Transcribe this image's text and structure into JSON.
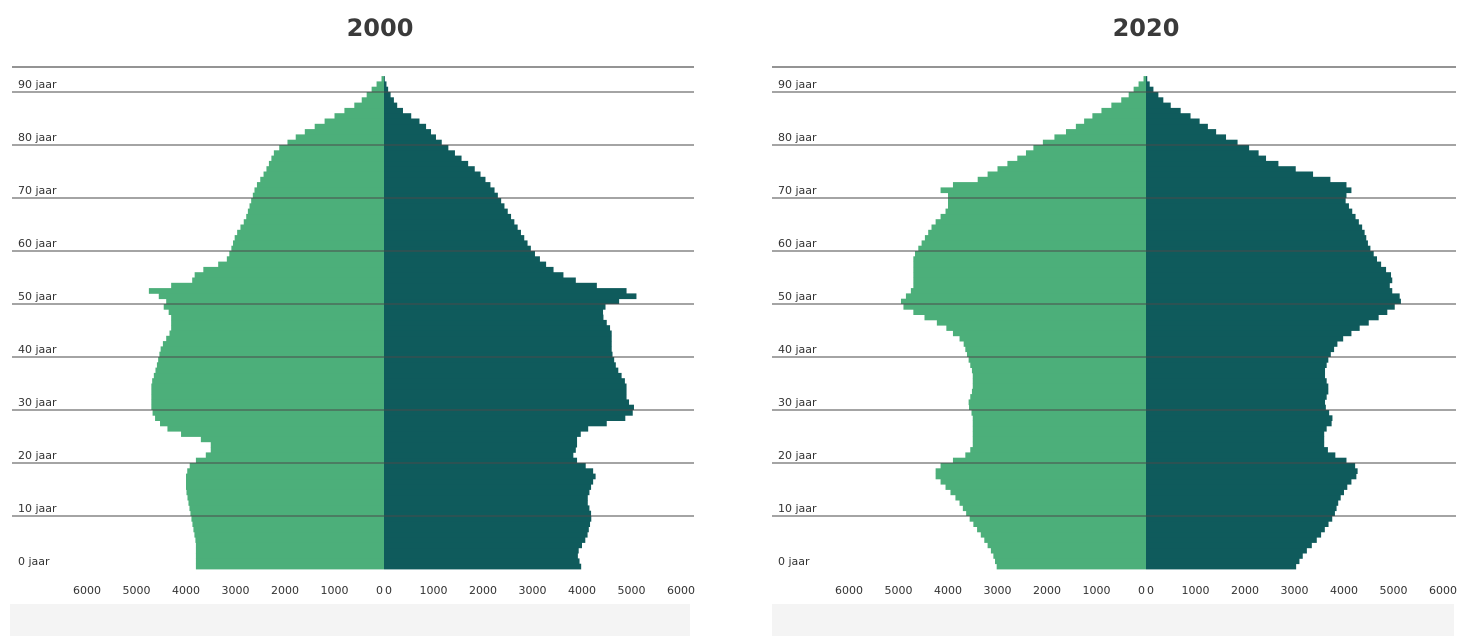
{
  "chart_data": [
    {
      "type": "bar",
      "title": "2000",
      "orientation": "horizontal-pyramid",
      "y_unit_label": "jaar",
      "y_tick_labels": [
        "0 jaar",
        "10 jaar",
        "20 jaar",
        "30 jaar",
        "40 jaar",
        "50 jaar",
        "60 jaar",
        "70 jaar",
        "80 jaar",
        "90 jaar"
      ],
      "y_tick_values": [
        0,
        10,
        20,
        30,
        40,
        50,
        60,
        70,
        80,
        90
      ],
      "x_tick_labels_left": [
        "6000",
        "5000",
        "4000",
        "3000",
        "2000",
        "1000",
        "0"
      ],
      "x_tick_labels_right": [
        "0",
        "1000",
        "2000",
        "3000",
        "4000",
        "5000",
        "6000"
      ],
      "xlim": [
        0,
        6000
      ],
      "ylim": [
        0,
        95
      ],
      "grid": "horizontal lines every 10 years",
      "left_color": "#4caf7a",
      "right_color": "#0f5b5c",
      "anchors_left": [
        [
          0,
          3800
        ],
        [
          5,
          3800
        ],
        [
          10,
          3900
        ],
        [
          15,
          4000
        ],
        [
          18,
          4000
        ],
        [
          20,
          3900
        ],
        [
          22,
          3500
        ],
        [
          24,
          3500
        ],
        [
          26,
          4300
        ],
        [
          28,
          4600
        ],
        [
          30,
          4700
        ],
        [
          33,
          4700
        ],
        [
          35,
          4700
        ],
        [
          38,
          4600
        ],
        [
          42,
          4500
        ],
        [
          45,
          4300
        ],
        [
          48,
          4300
        ],
        [
          50,
          4500
        ],
        [
          51,
          4300
        ],
        [
          52,
          4800
        ],
        [
          53,
          4700
        ],
        [
          54,
          3900
        ],
        [
          56,
          3800
        ],
        [
          58,
          3200
        ],
        [
          60,
          3100
        ],
        [
          63,
          3000
        ],
        [
          66,
          2800
        ],
        [
          69,
          2700
        ],
        [
          72,
          2600
        ],
        [
          75,
          2400
        ],
        [
          77,
          2300
        ],
        [
          79,
          2200
        ],
        [
          82,
          1700
        ],
        [
          85,
          1100
        ],
        [
          88,
          500
        ],
        [
          91,
          200
        ],
        [
          93,
          0
        ]
      ],
      "anchors_right": [
        [
          0,
          4000
        ],
        [
          3,
          3900
        ],
        [
          6,
          4100
        ],
        [
          10,
          4200
        ],
        [
          13,
          4100
        ],
        [
          16,
          4200
        ],
        [
          18,
          4300
        ],
        [
          20,
          4000
        ],
        [
          21,
          3800
        ],
        [
          23,
          3900
        ],
        [
          25,
          3900
        ],
        [
          27,
          4200
        ],
        [
          28,
          4800
        ],
        [
          30,
          5100
        ],
        [
          32,
          4900
        ],
        [
          35,
          4900
        ],
        [
          38,
          4700
        ],
        [
          41,
          4600
        ],
        [
          45,
          4600
        ],
        [
          48,
          4400
        ],
        [
          50,
          4500
        ],
        [
          51,
          5000
        ],
        [
          52,
          5200
        ],
        [
          53,
          4600
        ],
        [
          54,
          4000
        ],
        [
          56,
          3500
        ],
        [
          58,
          3200
        ],
        [
          60,
          3000
        ],
        [
          63,
          2800
        ],
        [
          66,
          2600
        ],
        [
          69,
          2400
        ],
        [
          72,
          2200
        ],
        [
          75,
          1900
        ],
        [
          78,
          1500
        ],
        [
          81,
          1100
        ],
        [
          84,
          800
        ],
        [
          87,
          300
        ],
        [
          90,
          100
        ],
        [
          93,
          0
        ]
      ]
    },
    {
      "type": "bar",
      "title": "2020",
      "orientation": "horizontal-pyramid",
      "y_unit_label": "jaar",
      "y_tick_labels": [
        "0 jaar",
        "10 jaar",
        "20 jaar",
        "30 jaar",
        "40 jaar",
        "50 jaar",
        "60 jaar",
        "70 jaar",
        "80 jaar",
        "90 jaar"
      ],
      "y_tick_values": [
        0,
        10,
        20,
        30,
        40,
        50,
        60,
        70,
        80,
        90
      ],
      "x_tick_labels_left": [
        "6000",
        "5000",
        "4000",
        "3000",
        "2000",
        "1000",
        "0"
      ],
      "x_tick_labels_right": [
        "0",
        "1000",
        "2000",
        "3000",
        "4000",
        "5000",
        "6000"
      ],
      "xlim": [
        0,
        6000
      ],
      "ylim": [
        0,
        95
      ],
      "grid": "horizontal lines every 10 years",
      "left_color": "#4caf7a",
      "right_color": "#0f5b5c",
      "anchors_left": [
        [
          0,
          3000
        ],
        [
          3,
          3100
        ],
        [
          6,
          3300
        ],
        [
          10,
          3600
        ],
        [
          13,
          3800
        ],
        [
          16,
          4100
        ],
        [
          18,
          4300
        ],
        [
          20,
          4100
        ],
        [
          21,
          3700
        ],
        [
          23,
          3500
        ],
        [
          26,
          3500
        ],
        [
          29,
          3500
        ],
        [
          31,
          3600
        ],
        [
          34,
          3500
        ],
        [
          37,
          3500
        ],
        [
          40,
          3600
        ],
        [
          43,
          3700
        ],
        [
          46,
          4100
        ],
        [
          48,
          4600
        ],
        [
          50,
          5000
        ],
        [
          51,
          4900
        ],
        [
          53,
          4700
        ],
        [
          56,
          4700
        ],
        [
          59,
          4700
        ],
        [
          62,
          4500
        ],
        [
          65,
          4300
        ],
        [
          68,
          4000
        ],
        [
          71,
          4000
        ],
        [
          72,
          4300
        ],
        [
          73,
          3500
        ],
        [
          75,
          3100
        ],
        [
          78,
          2500
        ],
        [
          80,
          2200
        ],
        [
          83,
          1500
        ],
        [
          86,
          1000
        ],
        [
          89,
          400
        ],
        [
          91,
          200
        ],
        [
          93,
          0
        ]
      ],
      "anchors_right": [
        [
          0,
          3000
        ],
        [
          3,
          3200
        ],
        [
          6,
          3500
        ],
        [
          10,
          3800
        ],
        [
          13,
          3900
        ],
        [
          16,
          4100
        ],
        [
          18,
          4300
        ],
        [
          20,
          4200
        ],
        [
          21,
          3900
        ],
        [
          23,
          3600
        ],
        [
          26,
          3600
        ],
        [
          28,
          3800
        ],
        [
          31,
          3600
        ],
        [
          34,
          3700
        ],
        [
          37,
          3600
        ],
        [
          40,
          3700
        ],
        [
          43,
          3900
        ],
        [
          46,
          4400
        ],
        [
          48,
          4800
        ],
        [
          50,
          5100
        ],
        [
          51,
          5200
        ],
        [
          53,
          4900
        ],
        [
          55,
          5000
        ],
        [
          58,
          4700
        ],
        [
          61,
          4500
        ],
        [
          64,
          4400
        ],
        [
          67,
          4200
        ],
        [
          70,
          4000
        ],
        [
          72,
          4200
        ],
        [
          73,
          3900
        ],
        [
          75,
          3200
        ],
        [
          77,
          2500
        ],
        [
          79,
          2200
        ],
        [
          82,
          1500
        ],
        [
          85,
          1000
        ],
        [
          88,
          400
        ],
        [
          91,
          100
        ],
        [
          93,
          0
        ]
      ]
    }
  ]
}
